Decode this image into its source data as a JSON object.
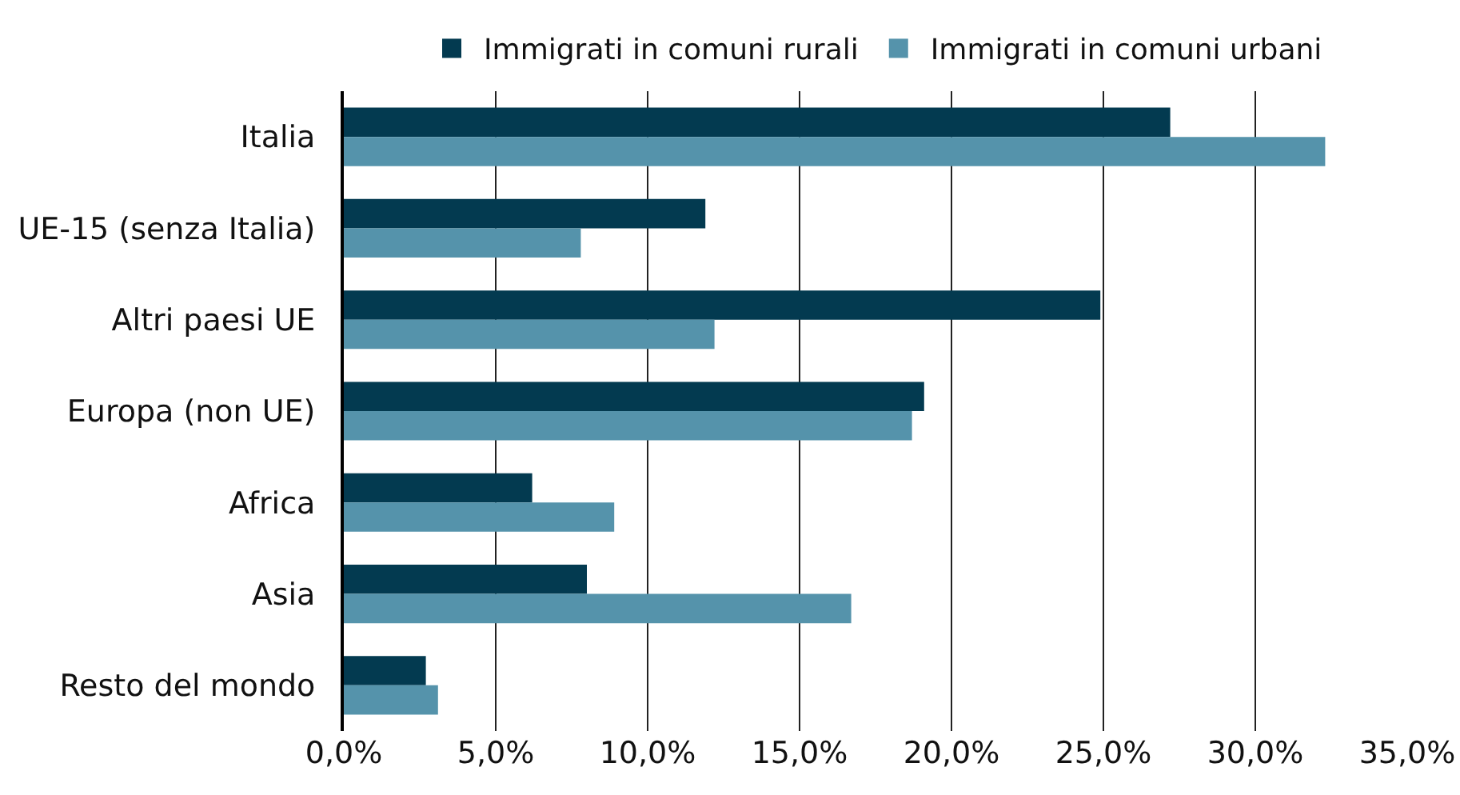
{
  "chart_data": {
    "type": "bar",
    "orientation": "horizontal",
    "categories": [
      "Italia",
      "UE-15 (senza Italia)",
      "Altri paesi UE",
      "Europa (non UE)",
      "Africa",
      "Asia",
      "Resto del mondo"
    ],
    "series": [
      {
        "name": "Immigrati in comuni rurali",
        "color": "#033a50",
        "values": [
          27.2,
          11.9,
          24.9,
          19.1,
          6.2,
          8.0,
          2.7
        ]
      },
      {
        "name": "Immigrati in comuni urbani",
        "color": "#5593ab",
        "values": [
          32.3,
          7.8,
          12.2,
          18.7,
          8.9,
          16.7,
          3.1
        ]
      }
    ],
    "xlim": [
      0,
      35
    ],
    "xticks": [
      {
        "value": 0,
        "label": "0,0%"
      },
      {
        "value": 5,
        "label": "5,0%"
      },
      {
        "value": 10,
        "label": "10,0%"
      },
      {
        "value": 15,
        "label": "15,0%"
      },
      {
        "value": 20,
        "label": "20,0%"
      },
      {
        "value": 25,
        "label": "25,0%"
      },
      {
        "value": 30,
        "label": "30,0%"
      },
      {
        "value": 35,
        "label": "35,0%"
      }
    ],
    "grid": "x",
    "legend": "top"
  }
}
